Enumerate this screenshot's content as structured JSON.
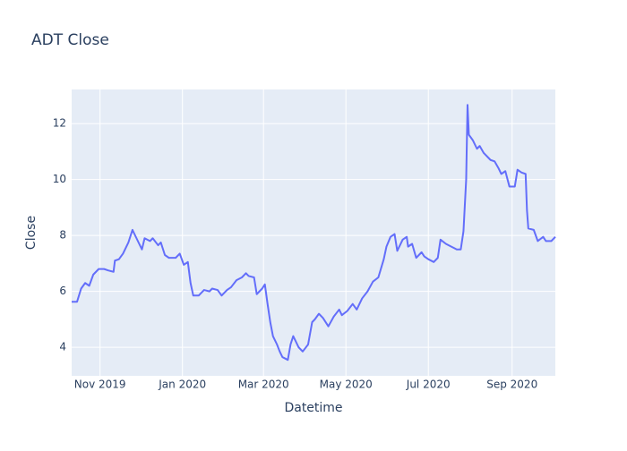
{
  "chart_data": {
    "type": "line",
    "title": "ADT Close",
    "x_label": "Datetime",
    "y_label": "Close",
    "x": [
      "2019-10-11",
      "2019-10-15",
      "2019-10-18",
      "2019-10-21",
      "2019-10-24",
      "2019-10-27",
      "2019-10-31",
      "2019-11-04",
      "2019-11-07",
      "2019-11-11",
      "2019-11-12",
      "2019-11-15",
      "2019-11-18",
      "2019-11-22",
      "2019-11-25",
      "2019-11-28",
      "2019-12-02",
      "2019-12-04",
      "2019-12-08",
      "2019-12-10",
      "2019-12-14",
      "2019-12-16",
      "2019-12-19",
      "2019-12-22",
      "2019-12-27",
      "2019-12-30",
      "2020-01-02",
      "2020-01-05",
      "2020-01-07",
      "2020-01-09",
      "2020-01-13",
      "2020-01-17",
      "2020-01-21",
      "2020-01-23",
      "2020-01-27",
      "2020-01-30",
      "2020-02-03",
      "2020-02-06",
      "2020-02-10",
      "2020-02-14",
      "2020-02-17",
      "2020-02-19",
      "2020-02-23",
      "2020-02-25",
      "2020-02-29",
      "2020-03-02",
      "2020-03-04",
      "2020-03-06",
      "2020-03-08",
      "2020-03-11",
      "2020-03-13",
      "2020-03-15",
      "2020-03-19",
      "2020-03-21",
      "2020-03-23",
      "2020-03-27",
      "2020-03-30",
      "2020-04-03",
      "2020-04-06",
      "2020-04-08",
      "2020-04-11",
      "2020-04-14",
      "2020-04-18",
      "2020-04-22",
      "2020-04-26",
      "2020-04-28",
      "2020-05-02",
      "2020-05-06",
      "2020-05-09",
      "2020-05-13",
      "2020-05-17",
      "2020-05-21",
      "2020-05-25",
      "2020-05-29",
      "2020-05-31",
      "2020-06-03",
      "2020-06-06",
      "2020-06-08",
      "2020-06-12",
      "2020-06-15",
      "2020-06-16",
      "2020-06-19",
      "2020-06-22",
      "2020-06-26",
      "2020-06-28",
      "2020-07-01",
      "2020-07-05",
      "2020-07-08",
      "2020-07-10",
      "2020-07-14",
      "2020-07-18",
      "2020-07-22",
      "2020-07-25",
      "2020-07-27",
      "2020-07-29",
      "2020-07-30",
      "2020-07-31",
      "2020-08-03",
      "2020-08-06",
      "2020-08-08",
      "2020-08-11",
      "2020-08-14",
      "2020-08-16",
      "2020-08-19",
      "2020-08-22",
      "2020-08-24",
      "2020-08-27",
      "2020-08-30",
      "2020-09-03",
      "2020-09-05",
      "2020-09-08",
      "2020-09-11",
      "2020-09-12",
      "2020-09-13",
      "2020-09-17",
      "2020-09-20",
      "2020-09-24",
      "2020-09-26",
      "2020-09-30",
      "2020-10-03"
    ],
    "series": [
      {
        "name": "Close",
        "color": "#636efa",
        "values": [
          5.63,
          5.63,
          6.1,
          6.3,
          6.2,
          6.6,
          6.8,
          6.8,
          6.75,
          6.7,
          7.1,
          7.15,
          7.35,
          7.75,
          8.2,
          7.9,
          7.5,
          7.9,
          7.8,
          7.9,
          7.65,
          7.75,
          7.3,
          7.2,
          7.2,
          7.35,
          6.95,
          7.05,
          6.3,
          5.85,
          5.85,
          6.05,
          6.0,
          6.1,
          6.05,
          5.85,
          6.05,
          6.15,
          6.4,
          6.5,
          6.65,
          6.55,
          6.5,
          5.9,
          6.1,
          6.25,
          5.55,
          4.9,
          4.4,
          4.1,
          3.85,
          3.65,
          3.55,
          4.1,
          4.4,
          4.0,
          3.85,
          4.1,
          4.9,
          5.0,
          5.2,
          5.05,
          4.75,
          5.1,
          5.35,
          5.15,
          5.3,
          5.55,
          5.35,
          5.75,
          6.0,
          6.35,
          6.5,
          7.15,
          7.6,
          7.95,
          8.05,
          7.45,
          7.85,
          7.95,
          7.6,
          7.7,
          7.2,
          7.4,
          7.25,
          7.15,
          7.05,
          7.2,
          7.85,
          7.7,
          7.6,
          7.5,
          7.5,
          8.15,
          10.0,
          12.67,
          11.6,
          11.4,
          11.1,
          11.2,
          10.95,
          10.8,
          10.7,
          10.65,
          10.4,
          10.2,
          10.3,
          9.75,
          9.75,
          10.35,
          10.25,
          10.2,
          8.9,
          8.25,
          8.2,
          7.8,
          7.95,
          7.8,
          7.8,
          7.95
        ]
      }
    ],
    "xlim": [
      "2019-10-11",
      "2020-10-03"
    ],
    "xticks": [
      {
        "value": "2019-11-01",
        "label": "Nov 2019"
      },
      {
        "value": "2020-01-01",
        "label": "Jan 2020"
      },
      {
        "value": "2020-03-01",
        "label": "Mar 2020"
      },
      {
        "value": "2020-05-01",
        "label": "May 2020"
      },
      {
        "value": "2020-07-01",
        "label": "Jul 2020"
      },
      {
        "value": "2020-09-01",
        "label": "Sep 2020"
      }
    ],
    "ylim": [
      2.98,
      13.22
    ],
    "yticks": [
      4,
      6,
      8,
      10,
      12
    ],
    "grid": true
  }
}
